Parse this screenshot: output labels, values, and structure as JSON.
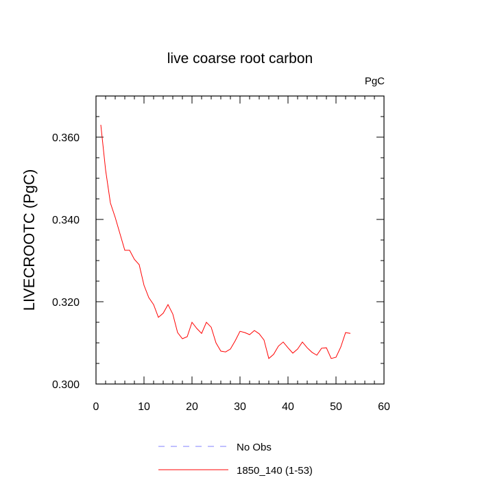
{
  "chart_data": {
    "type": "line",
    "title": "live coarse root carbon",
    "units_label": "PgC",
    "xlabel": "",
    "ylabel": "LIVECROOTC  (PgC)",
    "xlim": [
      0,
      60
    ],
    "ylim": [
      0.3,
      0.37
    ],
    "x_ticks": [
      0,
      10,
      20,
      30,
      40,
      50,
      60
    ],
    "x_tick_labels": [
      "0",
      "10",
      "20",
      "30",
      "40",
      "50",
      "60"
    ],
    "y_ticks": [
      0.3,
      0.32,
      0.34,
      0.36
    ],
    "y_tick_labels": [
      "0.300",
      "0.320",
      "0.340",
      "0.360"
    ],
    "grid": false,
    "series": [
      {
        "name": "1850_140 (1-53)",
        "color": "#ff0000",
        "style": "solid",
        "x": [
          1,
          2,
          3,
          4,
          5,
          6,
          7,
          8,
          9,
          10,
          11,
          12,
          13,
          14,
          15,
          16,
          17,
          18,
          19,
          20,
          21,
          22,
          23,
          24,
          25,
          26,
          27,
          28,
          29,
          30,
          31,
          32,
          33,
          34,
          35,
          36,
          37,
          38,
          39,
          40,
          41,
          42,
          43,
          44,
          45,
          46,
          47,
          48,
          49,
          50,
          51,
          52,
          53
        ],
        "y": [
          0.363,
          0.352,
          0.344,
          0.3405,
          0.3365,
          0.3325,
          0.3325,
          0.3303,
          0.329,
          0.324,
          0.321,
          0.3193,
          0.3162,
          0.3172,
          0.3193,
          0.317,
          0.3125,
          0.311,
          0.3115,
          0.315,
          0.3135,
          0.3123,
          0.315,
          0.3138,
          0.31,
          0.308,
          0.3078,
          0.3085,
          0.3105,
          0.3128,
          0.3125,
          0.312,
          0.313,
          0.3122,
          0.3107,
          0.3062,
          0.3072,
          0.3092,
          0.3102,
          0.3088,
          0.3075,
          0.3085,
          0.3102,
          0.3088,
          0.3077,
          0.307,
          0.3087,
          0.3088,
          0.3062,
          0.3065,
          0.309,
          0.3125,
          0.3123
        ]
      }
    ],
    "legend": [
      {
        "label": "No Obs",
        "color": "#8080ff",
        "style": "dashed"
      },
      {
        "label": "1850_140 (1-53)",
        "color": "#ff0000",
        "style": "solid"
      }
    ],
    "legend_position": "bottom-center"
  }
}
